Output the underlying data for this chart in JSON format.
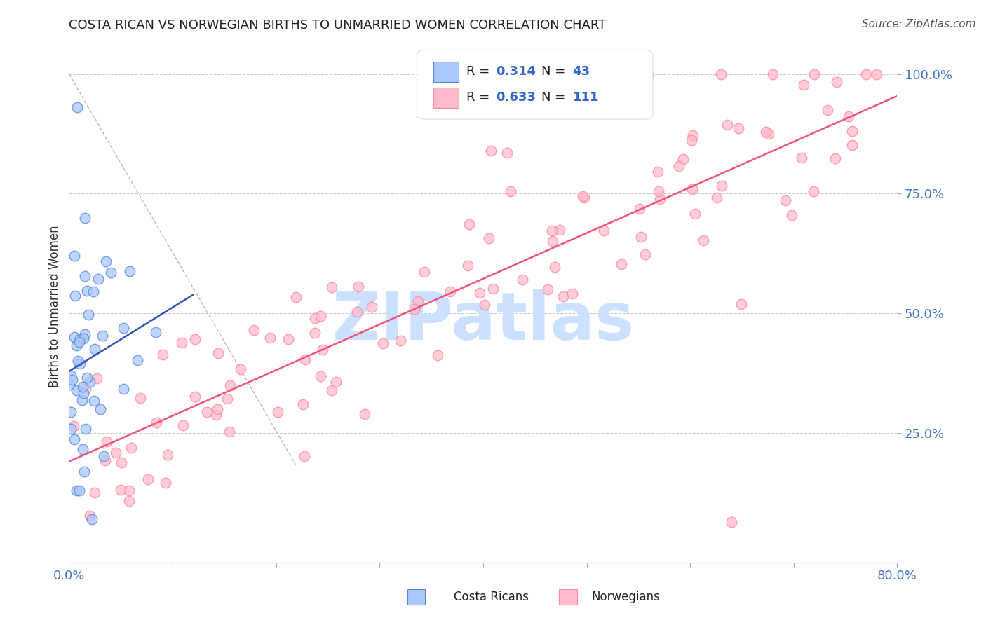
{
  "title": "COSTA RICAN VS NORWEGIAN BIRTHS TO UNMARRIED WOMEN CORRELATION CHART",
  "source": "Source: ZipAtlas.com",
  "ylabel": "Births to Unmarried Women",
  "x_min": 0.0,
  "x_max": 0.8,
  "y_min": 0.0,
  "y_max": 1.05,
  "x_ticks": [
    0.0,
    0.1,
    0.2,
    0.3,
    0.4,
    0.5,
    0.6,
    0.7,
    0.8
  ],
  "x_tick_labels": [
    "0.0%",
    "",
    "",
    "",
    "",
    "",
    "",
    "",
    "80.0%"
  ],
  "y_ticks": [
    0.25,
    0.5,
    0.75,
    1.0
  ],
  "y_tick_labels": [
    "25.0%",
    "50.0%",
    "75.0%",
    "100.0%"
  ],
  "grid_color": "#cccccc",
  "background_color": "#ffffff",
  "watermark_text": "ZIPatlas",
  "watermark_color": "#cce0ff",
  "legend_R1": "0.314",
  "legend_N1": "43",
  "legend_R2": "0.633",
  "legend_N2": "111",
  "blue_face_color": "#aac8ff",
  "blue_edge_color": "#5588dd",
  "pink_face_color": "#ffbbcc",
  "pink_edge_color": "#ff8899",
  "title_color": "#222222",
  "tick_color": "#4477cc",
  "costa_rican_label": "Costa Ricans",
  "norwegian_label": "Norwegians",
  "blue_trend_color": "#3355bb",
  "pink_trend_color": "#ee5577",
  "legend_text_color": "#222222",
  "legend_num_color": "#3366cc",
  "source_color": "#555555"
}
